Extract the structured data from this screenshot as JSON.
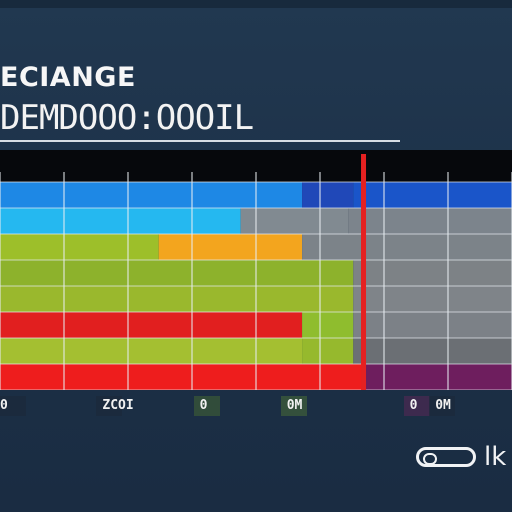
{
  "header": {
    "title": "ECIANGE",
    "subtitle": "DEMDOOO:OOOIL"
  },
  "chart_data": {
    "type": "bar",
    "orientation": "horizontal-stacked",
    "grid": true,
    "xlim": [
      0,
      100
    ],
    "tick_labels": [
      "0",
      "ZCOI",
      "0",
      "0M",
      "0",
      "0M"
    ],
    "rows": [
      {
        "segments": [
          {
            "value": 59,
            "color": "#1e88e5"
          },
          {
            "value": 10,
            "color": "#2048b8"
          },
          {
            "value": 31,
            "color": "#1a55c9"
          }
        ]
      },
      {
        "segments": [
          {
            "value": 47,
            "color": "#25b8f0"
          },
          {
            "value": 21,
            "color": "#818a91"
          },
          {
            "value": 32,
            "color": "#7c848c"
          }
        ]
      },
      {
        "segments": [
          {
            "value": 31,
            "color": "#9dbf2a"
          },
          {
            "value": 28,
            "color": "#f3a51e"
          },
          {
            "value": 41,
            "color": "#7c8389"
          }
        ]
      },
      {
        "segments": [
          {
            "value": 69,
            "color": "#8db22c"
          },
          {
            "value": 31,
            "color": "#7d8286"
          }
        ]
      },
      {
        "segments": [
          {
            "value": 69,
            "color": "#9ab82d"
          },
          {
            "value": 31,
            "color": "#7f8489"
          }
        ]
      },
      {
        "segments": [
          {
            "value": 59,
            "color": "#e11f1f"
          },
          {
            "value": 10,
            "color": "#8fbd2e"
          },
          {
            "value": 31,
            "color": "#7c8187"
          }
        ]
      },
      {
        "segments": [
          {
            "value": 59,
            "color": "#a4bf31"
          },
          {
            "value": 10,
            "color": "#96b92d"
          },
          {
            "value": 31,
            "color": "#6b6f74"
          }
        ]
      },
      {
        "segments": [
          {
            "value": 71,
            "color": "#ee1d1d"
          },
          {
            "value": 29,
            "color": "#6e1e5e"
          }
        ]
      }
    ],
    "markers": [
      {
        "x": 71,
        "color": "#e52121"
      }
    ]
  },
  "footer": {
    "label": "lk"
  },
  "colors": {
    "background": "#1d3148",
    "grid": "#e8edf2",
    "accent_red": "#e52121"
  }
}
